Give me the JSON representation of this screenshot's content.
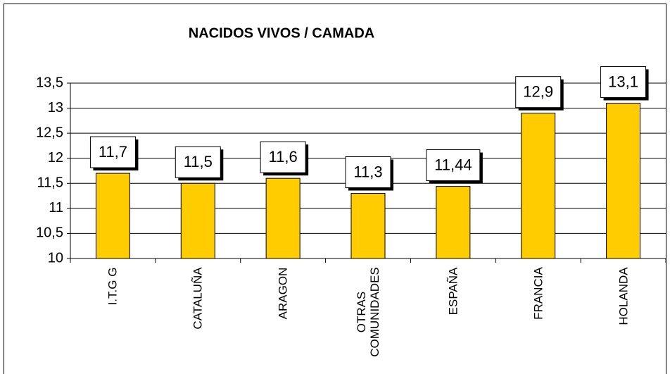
{
  "chart_data": {
    "type": "bar",
    "title": "NACIDOS VIVOS / CAMADA",
    "categories": [
      "I.T.G G",
      "CATALUÑA",
      "ARAGON",
      "OTRAS\nCOMUNIDADES",
      "ESPAÑA",
      "FRANCIA",
      "HOLANDA"
    ],
    "values": [
      11.7,
      11.5,
      11.6,
      11.3,
      11.44,
      12.9,
      13.1
    ],
    "value_labels": [
      "11,7",
      "11,5",
      "11,6",
      "11,3",
      "11,44",
      "12,9",
      "13,1"
    ],
    "color": "#ffcc00",
    "ylim": [
      10,
      13.5
    ],
    "yticks": [
      10,
      {
        "value": 10.5,
        "label": "10,5"
      },
      11,
      {
        "value": 11.5,
        "label": "11,5"
      },
      12,
      {
        "value": 12.5,
        "label": "12,5"
      },
      13,
      {
        "value": 13.5,
        "label": "13,5"
      }
    ],
    "grid": true
  }
}
